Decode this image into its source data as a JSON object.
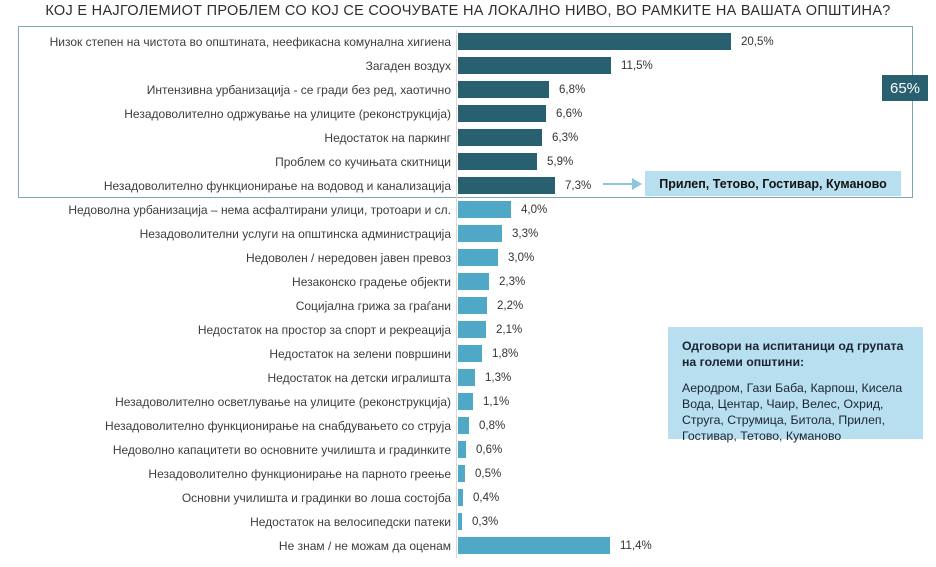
{
  "title": "КОЈ Е НАЈГОЛЕМИОТ ПРОБЛЕМ СО КОЈ СЕ СООЧУВАТЕ НА ЛОКАЛНО НИВО, ВО РАМКИТЕ НА ВАШАТА ОПШТИНА?",
  "chart_data": {
    "type": "bar",
    "orientation": "horizontal",
    "unit": "%",
    "decimal_separator": ",",
    "xlim": [
      0,
      21
    ],
    "grid": false,
    "data_labels": true,
    "dark_group_count": 7,
    "categories": [
      "Низок степен на чистота во општината, неефикасна комунална хигиена",
      "Загаден воздух",
      "Интензивна урбанизација - се гради без ред, хаотично",
      "Незадоволително одржување на улиците (реконструкција)",
      "Недостаток на паркинг",
      "Проблем со кучињата скитници",
      "Незадоволително функционирање на водовод и канализација",
      "Недоволна урбанизација –  нема асфалтирани улици, тротоари и сл.",
      "Незадоволителни услуги на општинска администрација",
      "Недоволен / нередовен јавен превоз",
      "Незаконско градење објекти",
      "Социјална грижа за граѓани",
      "Недостаток на простор за спорт и рекреација",
      "Недостаток на зелени површини",
      "Недостаток на детски игралишта",
      "Незадоволително осветлување на улиците (реконструкција)",
      "Незадоволително функционирање на снабдувањето со струја",
      "Недоволно капацитети во основните училишта и градинките",
      "Незадоволително функционирање на парното греење",
      "Основни училишта и градинки во лоша состојба",
      "Недостаток на велосипедски патеки",
      "Не знам / не можам да оценам"
    ],
    "values": [
      20.5,
      11.5,
      6.8,
      6.6,
      6.3,
      5.9,
      7.3,
      4.0,
      3.3,
      3.0,
      2.3,
      2.2,
      2.1,
      1.8,
      1.3,
      1.1,
      0.8,
      0.6,
      0.5,
      0.4,
      0.3,
      11.4
    ],
    "value_labels": [
      "20,5%",
      "11,5%",
      "6,8%",
      "6,6%",
      "6,3%",
      "5,9%",
      "7,3%",
      "4,0%",
      "3,3%",
      "3,0%",
      "2,3%",
      "2,2%",
      "2,1%",
      "1,8%",
      "1,3%",
      "1,1%",
      "0,8%",
      "0,6%",
      "0,5%",
      "0,4%",
      "0,3%",
      "11,4%"
    ]
  },
  "annotations": {
    "total_badge": "65%",
    "callout": {
      "text": "Прилеп, Тетово, Гостивар, Куманово",
      "attached_to": "Незадоволително функционирање на водовод и канализација"
    },
    "info_box": {
      "heading": "Одговори на испитаници од групата на големи општини:",
      "body": "Аеродром, Гази Баба, Карпош, Кисела Вода, Центар, Чаир, Велес, Охрид, Струга, Струмица, Битола, Прилеп, Гостивар, Тетово, Куманово"
    }
  },
  "colors": {
    "dark_bar": "#28606f",
    "light_bar": "#4fa9c6",
    "highlight_bg": "#b7dfef",
    "badge_bg": "#28606f",
    "badge_text": "#ffffff",
    "group_box_border": "#7ea7b4",
    "arrow": "#8cc6db"
  }
}
